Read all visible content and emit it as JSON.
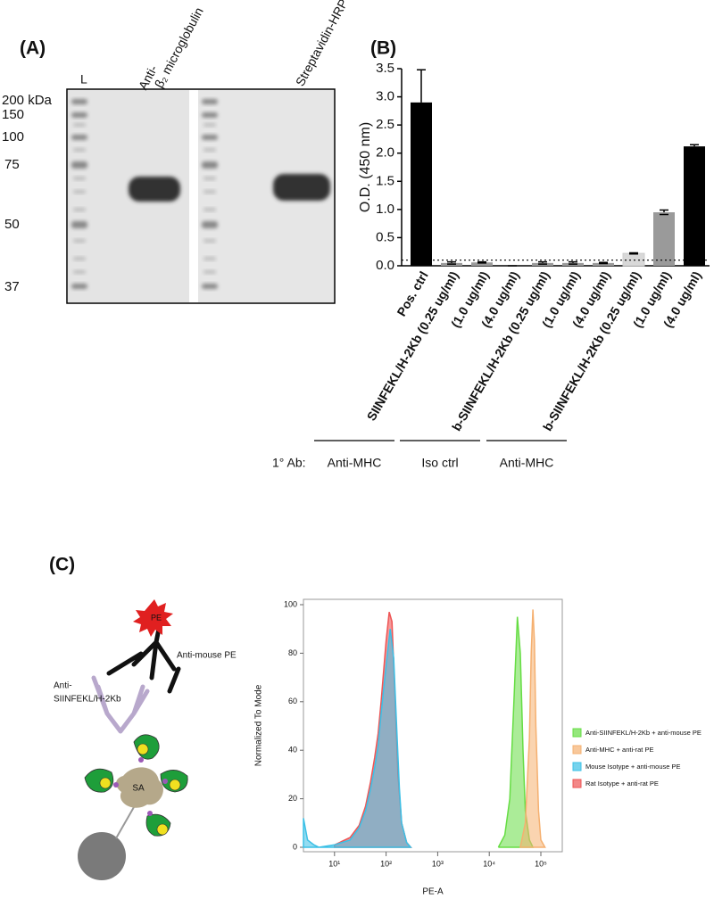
{
  "panels": {
    "A": "(A)",
    "B": "(B)",
    "C": "(C)"
  },
  "panel_a": {
    "lanes": [
      "L",
      "Anti-",
      "β₂ microglobulin",
      "Streptavidin-HRP"
    ],
    "ladder": [
      "200 kDa",
      "150",
      "100",
      "75",
      "50",
      "37"
    ]
  },
  "diagram": {
    "star": "PE",
    "secondary": "Anti-mouse PE",
    "primary": [
      "Anti-",
      "SIINFEKL/H-2Kb"
    ],
    "core": "SA"
  },
  "chart_data": [
    {
      "type": "bar",
      "ylabel": "O.D. (450 nm)",
      "categories": [
        "Pos. ctrl",
        "SIINFEKL/H-2Kb (0.25 ug/ml)",
        "(1.0 ug/ml)",
        "(4.0 ug/ml)",
        "b-SIINFEKL/H-2Kb (0.25 ug/ml)",
        "(1.0 ug/ml)",
        "(4.0 ug/ml)",
        "b-SIINFEKL/H-2Kb (0.25 ug/ml)",
        "(1.0 ug/ml)",
        "(4.0 ug/ml)"
      ],
      "series": [
        {
          "values": [
            2.9,
            0.05,
            0.06,
            0,
            0.05,
            0.05,
            0.05,
            0.22,
            0.95,
            2.12
          ],
          "errors": [
            0.58,
            0.02,
            0.01,
            0,
            0.02,
            0.02,
            0.01,
            0.01,
            0.04,
            0.03
          ],
          "colors": [
            "#000000",
            "#9a9a9a",
            "#9a9a9a",
            "#9a9a9a",
            "#9a9a9a",
            "#9a9a9a",
            "#9a9a9a",
            "#d8d8d8",
            "#9a9a9a",
            "#000000"
          ]
        }
      ],
      "reference_line": 0.1,
      "ylim": [
        0,
        3.5
      ],
      "yticks": [
        {
          "value": 0,
          "label": "0.0"
        },
        0.5,
        {
          "value": 1,
          "label": "1.0"
        },
        1.5,
        {
          "value": 2,
          "label": "2.0"
        },
        2.5,
        {
          "value": 3,
          "label": "3.0"
        },
        3.5
      ],
      "group_prefix": "1° Ab:",
      "groups": [
        "Anti-MHC",
        "Iso ctrl",
        "Anti-MHC"
      ]
    },
    {
      "type": "area",
      "xlabel": "PE-A",
      "ylabel": "Normalized To Mode",
      "log_x": true,
      "xlim": [
        2.5,
        260000
      ],
      "ylim": [
        0,
        100
      ],
      "xticks": [
        {
          "value": 10,
          "label": "10¹"
        },
        {
          "value": 100,
          "label": "10²"
        },
        {
          "value": 1000,
          "label": "10³"
        },
        {
          "value": 10000,
          "label": "10⁴"
        },
        {
          "value": 100000,
          "label": "10⁵"
        }
      ],
      "yticks": [
        0,
        20,
        40,
        60,
        80,
        100
      ],
      "series": [
        {
          "name": "Rat Isotype + anti-rat PE",
          "color": "#ee5555",
          "x": [
            10,
            20,
            30,
            40,
            50,
            60,
            70,
            80,
            100,
            115,
            130,
            150,
            170,
            200,
            250,
            300
          ],
          "values": [
            1,
            4,
            9,
            17,
            27,
            37,
            47,
            60,
            85,
            97,
            93,
            60,
            30,
            10,
            2,
            0
          ]
        },
        {
          "name": "Mouse Isotype + anti-mouse PE",
          "color": "#3cc0e6",
          "x": [
            2.5,
            3,
            4,
            5,
            10,
            20,
            30,
            40,
            50,
            60,
            70,
            80,
            100,
            120,
            140,
            160,
            180,
            200,
            250,
            300
          ],
          "values": [
            12,
            3,
            1,
            0,
            1,
            3,
            8,
            15,
            24,
            33,
            42,
            55,
            75,
            90,
            78,
            50,
            25,
            10,
            2,
            0
          ]
        },
        {
          "name": "Anti-SIINFEKL/H-2Kb + anti-mouse PE",
          "color": "#66dd44",
          "x": [
            15000,
            20000,
            25000,
            30000,
            35000,
            40000,
            45000,
            50000,
            60000,
            70000
          ],
          "values": [
            0,
            5,
            20,
            60,
            95,
            80,
            40,
            15,
            3,
            0
          ]
        },
        {
          "name": "Anti-MHC + anti-rat PE",
          "color": "#f5b070",
          "x": [
            40000,
            50000,
            60000,
            65000,
            70000,
            75000,
            80000,
            90000,
            100000,
            120000
          ],
          "values": [
            0,
            10,
            45,
            80,
            98,
            85,
            50,
            15,
            3,
            0
          ]
        }
      ],
      "legend_order": [
        2,
        3,
        1,
        0
      ]
    }
  ]
}
